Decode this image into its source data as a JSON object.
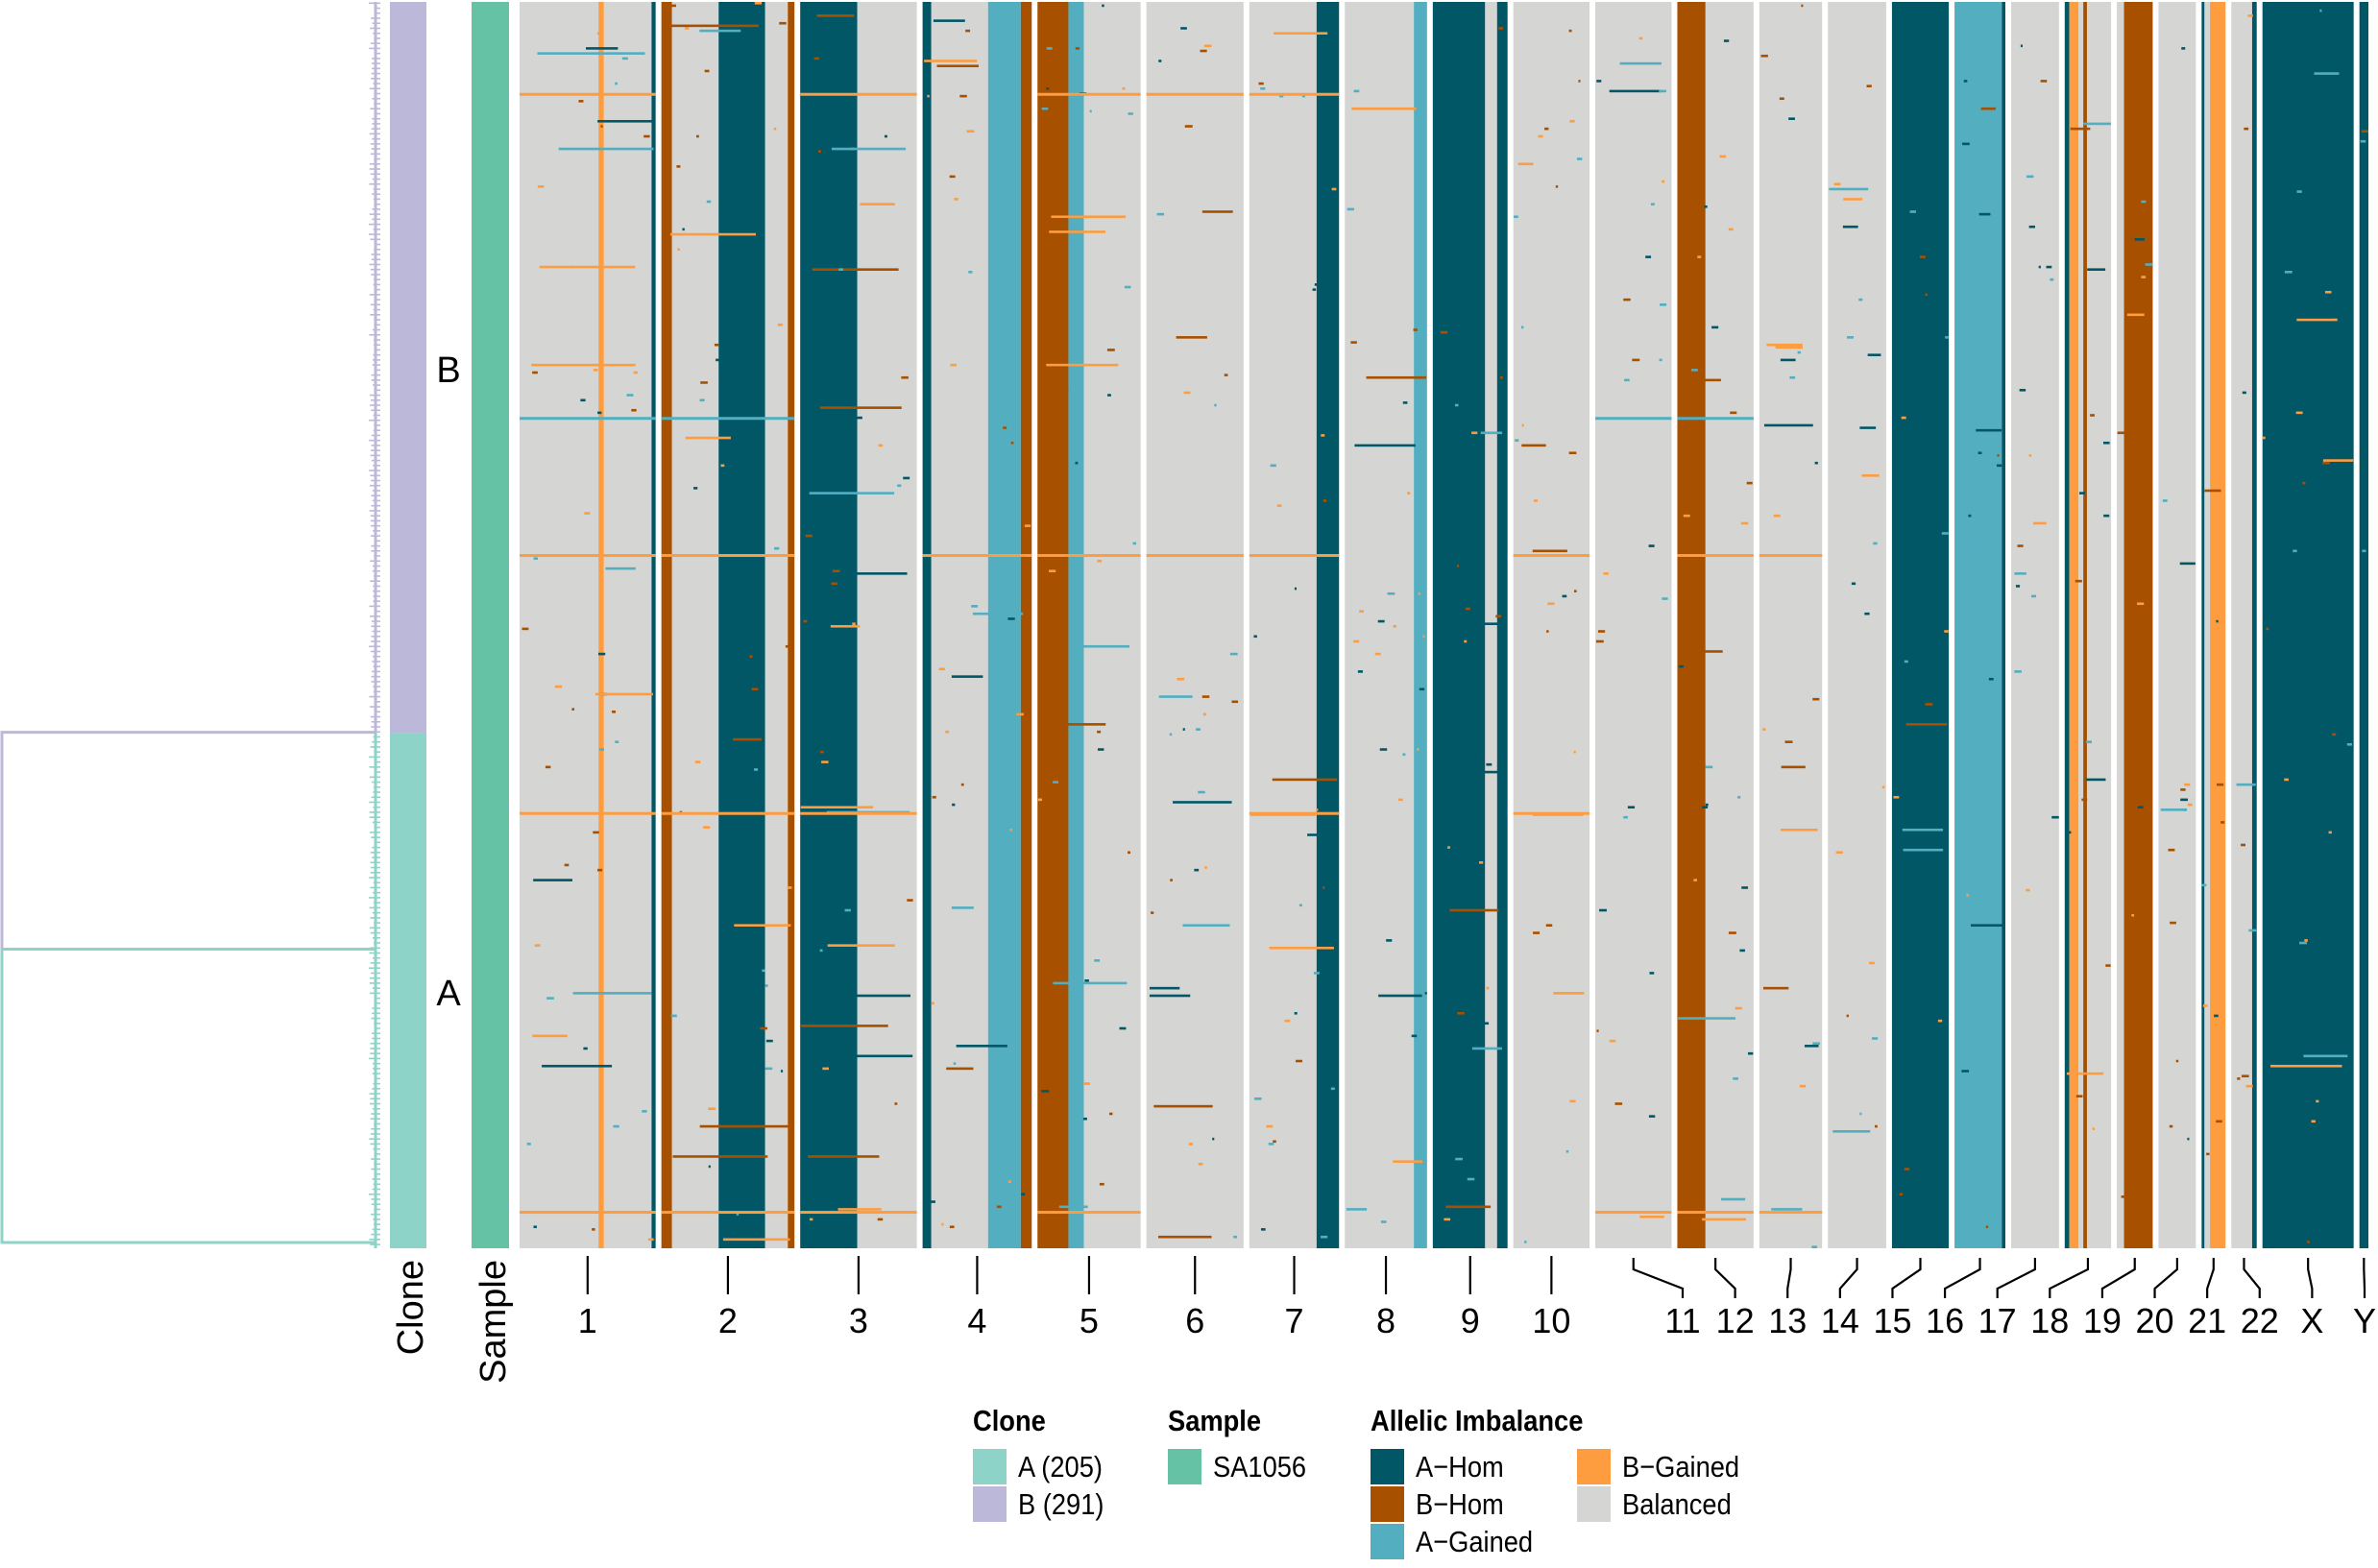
{
  "chart_data": {
    "type": "heatmap",
    "title": "",
    "description": "Single-cell allelic imbalance heatmap with hierarchical clustering dendrogram, clone and sample annotation tracks",
    "n_cells": 496,
    "row_annotations": {
      "clone": {
        "label": "Clone",
        "groups": [
          {
            "name": "B",
            "count": 291,
            "color": "#BCB8D9",
            "row_start_fraction": 0.0,
            "row_end_fraction": 0.587
          },
          {
            "name": "A",
            "count": 205,
            "color": "#8DD3C7",
            "row_start_fraction": 0.587,
            "row_end_fraction": 1.0
          }
        ]
      },
      "sample": {
        "label": "Sample",
        "groups": [
          {
            "name": "SA1056",
            "color": "#66C2A5"
          }
        ]
      }
    },
    "clone_labels": [
      "B",
      "A"
    ],
    "chromosomes": [
      "1",
      "2",
      "3",
      "4",
      "5",
      "6",
      "7",
      "8",
      "9",
      "10",
      "11",
      "12",
      "13",
      "14",
      "15",
      "16",
      "17",
      "18",
      "19",
      "20",
      "21",
      "22",
      "X",
      "Y"
    ],
    "chromosome_relative_widths": [
      9.1,
      8.9,
      7.8,
      7.3,
      6.9,
      6.5,
      6.0,
      5.5,
      5.0,
      5.1,
      5.1,
      5.1,
      4.2,
      3.9,
      3.8,
      3.4,
      3.2,
      3.1,
      2.4,
      2.5,
      1.6,
      1.7,
      6.1,
      0.6
    ],
    "state_colors": {
      "A-Hom": "#025767",
      "B-Hom": "#A75000",
      "A-Gained": "#53AEC0",
      "B-Gained": "#FD9D40",
      "Balanced": "#D5D5D4"
    },
    "dominant_patterns": [
      {
        "chromosome": "1",
        "segments": [
          {
            "from": 0.0,
            "to": 0.58,
            "state": "Balanced"
          },
          {
            "from": 0.58,
            "to": 0.62,
            "state": "B-Gained"
          },
          {
            "from": 0.62,
            "to": 0.97,
            "state": "Balanced"
          },
          {
            "from": 0.97,
            "to": 1.0,
            "state": "A-Hom"
          }
        ]
      },
      {
        "chromosome": "2",
        "segments": [
          {
            "from": 0.0,
            "to": 0.08,
            "state": "B-Hom"
          },
          {
            "from": 0.08,
            "to": 0.43,
            "state": "Balanced"
          },
          {
            "from": 0.43,
            "to": 0.78,
            "state": "A-Hom"
          },
          {
            "from": 0.78,
            "to": 0.95,
            "state": "Balanced"
          },
          {
            "from": 0.95,
            "to": 1.0,
            "state": "B-Hom"
          }
        ]
      },
      {
        "chromosome": "3",
        "segments": [
          {
            "from": 0.0,
            "to": 0.49,
            "state": "A-Hom"
          },
          {
            "from": 0.49,
            "to": 1.0,
            "state": "Balanced"
          }
        ]
      },
      {
        "chromosome": "4",
        "segments": [
          {
            "from": 0.0,
            "to": 0.08,
            "state": "A-Hom"
          },
          {
            "from": 0.08,
            "to": 0.6,
            "state": "Balanced"
          },
          {
            "from": 0.6,
            "to": 0.9,
            "state": "A-Gained"
          },
          {
            "from": 0.9,
            "to": 1.0,
            "state": "B-Hom"
          }
        ]
      },
      {
        "chromosome": "5",
        "segments": [
          {
            "from": 0.0,
            "to": 0.3,
            "state": "B-Hom"
          },
          {
            "from": 0.3,
            "to": 0.45,
            "state": "A-Gained"
          },
          {
            "from": 0.45,
            "to": 1.0,
            "state": "Balanced"
          }
        ]
      },
      {
        "chromosome": "6",
        "segments": [
          {
            "from": 0.0,
            "to": 1.0,
            "state": "Balanced"
          }
        ]
      },
      {
        "chromosome": "7",
        "segments": [
          {
            "from": 0.0,
            "to": 0.75,
            "state": "Balanced"
          },
          {
            "from": 0.75,
            "to": 1.0,
            "state": "A-Hom"
          }
        ]
      },
      {
        "chromosome": "8",
        "segments": [
          {
            "from": 0.0,
            "to": 0.84,
            "state": "Balanced"
          },
          {
            "from": 0.84,
            "to": 1.0,
            "state": "A-Gained"
          }
        ]
      },
      {
        "chromosome": "9",
        "segments": [
          {
            "from": 0.0,
            "to": 0.7,
            "state": "A-Hom"
          },
          {
            "from": 0.7,
            "to": 0.86,
            "state": "Balanced"
          },
          {
            "from": 0.86,
            "to": 1.0,
            "state": "A-Hom"
          }
        ]
      },
      {
        "chromosome": "10",
        "segments": [
          {
            "from": 0.0,
            "to": 1.0,
            "state": "Balanced"
          }
        ]
      },
      {
        "chromosome": "11",
        "segments": [
          {
            "from": 0.0,
            "to": 1.0,
            "state": "Balanced"
          }
        ]
      },
      {
        "chromosome": "12",
        "segments": [
          {
            "from": 0.0,
            "to": 0.37,
            "state": "B-Hom"
          },
          {
            "from": 0.37,
            "to": 1.0,
            "state": "Balanced"
          }
        ]
      },
      {
        "chromosome": "13",
        "segments": [
          {
            "from": 0.0,
            "to": 1.0,
            "state": "Balanced"
          }
        ]
      },
      {
        "chromosome": "14",
        "segments": [
          {
            "from": 0.0,
            "to": 1.0,
            "state": "Balanced"
          }
        ]
      },
      {
        "chromosome": "15",
        "segments": [
          {
            "from": 0.0,
            "to": 1.0,
            "state": "A-Hom"
          }
        ]
      },
      {
        "chromosome": "16",
        "segments": [
          {
            "from": 0.0,
            "to": 0.93,
            "state": "A-Gained"
          },
          {
            "from": 0.93,
            "to": 1.0,
            "state": "A-Hom"
          }
        ]
      },
      {
        "chromosome": "17",
        "segments": [
          {
            "from": 0.0,
            "to": 1.0,
            "state": "Balanced"
          }
        ]
      },
      {
        "chromosome": "18",
        "segments": [
          {
            "from": 0.0,
            "to": 0.1,
            "state": "A-Hom"
          },
          {
            "from": 0.1,
            "to": 0.3,
            "state": "B-Gained"
          },
          {
            "from": 0.3,
            "to": 0.4,
            "state": "Balanced"
          },
          {
            "from": 0.4,
            "to": 0.48,
            "state": "B-Hom"
          },
          {
            "from": 0.48,
            "to": 1.0,
            "state": "Balanced"
          }
        ]
      },
      {
        "chromosome": "19",
        "segments": [
          {
            "from": 0.0,
            "to": 0.2,
            "state": "Balanced"
          },
          {
            "from": 0.2,
            "to": 1.0,
            "state": "B-Hom"
          }
        ]
      },
      {
        "chromosome": "20",
        "segments": [
          {
            "from": 0.0,
            "to": 1.0,
            "state": "Balanced"
          }
        ]
      },
      {
        "chromosome": "21",
        "segments": [
          {
            "from": 0.0,
            "to": 0.12,
            "state": "A-Hom"
          },
          {
            "from": 0.12,
            "to": 0.35,
            "state": "Balanced"
          },
          {
            "from": 0.35,
            "to": 1.0,
            "state": "B-Gained"
          }
        ]
      },
      {
        "chromosome": "22",
        "segments": [
          {
            "from": 0.0,
            "to": 0.82,
            "state": "Balanced"
          },
          {
            "from": 0.82,
            "to": 1.0,
            "state": "A-Hom"
          }
        ]
      },
      {
        "chromosome": "X",
        "segments": [
          {
            "from": 0.0,
            "to": 1.0,
            "state": "A-Hom"
          }
        ]
      },
      {
        "chromosome": "Y",
        "segments": [
          {
            "from": 0.0,
            "to": 1.0,
            "state": "A-Hom"
          }
        ]
      }
    ],
    "recurrent_row_events": [
      {
        "row_fraction": 0.073,
        "state": "B-Gained",
        "chromosomes": [
          "1",
          "3",
          "5",
          "6",
          "7"
        ]
      },
      {
        "row_fraction": 0.333,
        "state": "A-Gained",
        "chromosomes": [
          "1",
          "2",
          "11",
          "12"
        ]
      },
      {
        "row_fraction": 0.443,
        "state": "B-Gained",
        "chromosomes": [
          "1",
          "2",
          "4",
          "5",
          "6",
          "7",
          "10",
          "12",
          "13"
        ]
      },
      {
        "row_fraction": 0.65,
        "state": "B-Gained",
        "chromosomes": [
          "1",
          "2",
          "3",
          "7",
          "10"
        ]
      },
      {
        "row_fraction": 0.97,
        "state": "B-Gained",
        "chromosomes": [
          "1",
          "2",
          "3",
          "5",
          "11",
          "12",
          "13"
        ]
      }
    ],
    "legend": {
      "position": "bottom",
      "groups": [
        {
          "title": "Clone",
          "entries": [
            {
              "label": "A (205)",
              "color": "#8DD3C7"
            },
            {
              "label": "B (291)",
              "color": "#BCB8D9"
            }
          ]
        },
        {
          "title": "Sample",
          "entries": [
            {
              "label": "SA1056",
              "color": "#66C2A5"
            }
          ]
        },
        {
          "title": "Allelic Imbalance",
          "entries": [
            {
              "label": "A−Hom",
              "color": "#025767"
            },
            {
              "label": "B−Hom",
              "color": "#A75000"
            },
            {
              "label": "A−Gained",
              "color": "#53AEC0"
            },
            {
              "label": "B−Gained",
              "color": "#FD9D40"
            },
            {
              "label": "Balanced",
              "color": "#D5D5D4"
            }
          ]
        }
      ]
    },
    "axis_labels": {
      "clone_track": "Clone",
      "sample_track": "Sample"
    }
  }
}
